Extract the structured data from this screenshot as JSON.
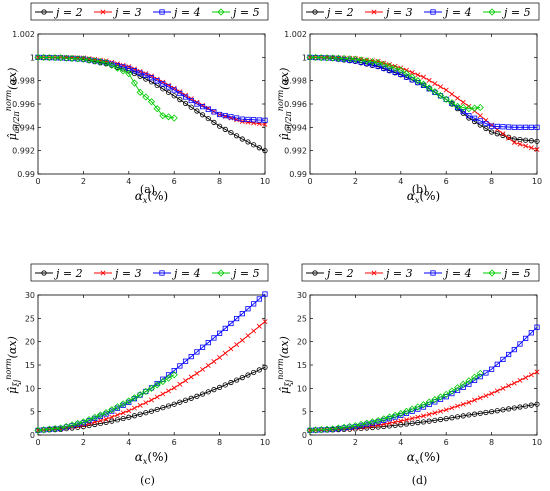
{
  "figure_labels": [
    "(a)",
    "(b)",
    "(c)",
    "(d)"
  ],
  "colors": {
    "j2": "#000000",
    "j3": "#ff0000",
    "j4": "#0000ff",
    "j5": "#00cc00"
  },
  "chart_data": [
    {
      "type": "line",
      "panel_label": "(a)",
      "xlabel": "αx(%)",
      "ylabel": "μ̂ωj/2π norm(αx)",
      "xlim": [
        0,
        10
      ],
      "ylim": [
        0.99,
        1.002
      ],
      "xticks": [
        "0",
        "2",
        "4",
        "6",
        "8",
        "10"
      ],
      "yticks": [
        "0.99",
        "0.992",
        "0.994",
        "0.996",
        "0.998",
        "1",
        "1.002"
      ],
      "legend_position": "top",
      "series": [
        {
          "name": "j = 2",
          "marker": "circle",
          "x": [
            0,
            1,
            2,
            3,
            4,
            5,
            6,
            7,
            8,
            9,
            10
          ],
          "y": [
            1.0,
            0.99996,
            0.9998,
            0.99945,
            0.99885,
            0.9979,
            0.9967,
            0.9954,
            0.9941,
            0.993,
            0.992
          ]
        },
        {
          "name": "j = 3",
          "marker": "cross",
          "x": [
            0,
            1,
            2,
            3,
            4,
            5,
            6,
            7,
            8,
            9,
            10
          ],
          "y": [
            1.0,
            1.0,
            0.99995,
            0.9997,
            0.9992,
            0.9984,
            0.99735,
            0.99615,
            0.9951,
            0.9945,
            0.99425
          ]
        },
        {
          "name": "j = 4",
          "marker": "square",
          "x": [
            0,
            1,
            2,
            3,
            4,
            5,
            6,
            7,
            8,
            9,
            10
          ],
          "y": [
            1.0,
            0.99995,
            0.99985,
            0.99955,
            0.99905,
            0.99825,
            0.9972,
            0.996,
            0.9951,
            0.9947,
            0.9946
          ]
        },
        {
          "name": "j = 5",
          "marker": "diamond",
          "x": [
            0,
            1,
            2,
            3,
            4,
            4.5,
            5,
            5.5,
            6
          ],
          "y": [
            1.0,
            0.99996,
            0.99985,
            0.99955,
            0.9986,
            0.997,
            0.9962,
            0.995,
            0.9948
          ]
        }
      ]
    },
    {
      "type": "line",
      "panel_label": "(b)",
      "xlabel": "αx(%)",
      "ylabel": "μ̂ωj/2π norm(αx)",
      "xlim": [
        0,
        10
      ],
      "ylim": [
        0.99,
        1.002
      ],
      "xticks": [
        "0",
        "2",
        "4",
        "6",
        "8",
        "10"
      ],
      "yticks": [
        "0.99",
        "0.992",
        "0.994",
        "0.996",
        "0.998",
        "1",
        "1.002"
      ],
      "legend_position": "top",
      "series": [
        {
          "name": "j = 2",
          "marker": "circle",
          "x": [
            0,
            1,
            2,
            3,
            4,
            5,
            6,
            7,
            8,
            9,
            10
          ],
          "y": [
            1.0,
            0.9999,
            0.99965,
            0.9992,
            0.9985,
            0.9976,
            0.9964,
            0.9948,
            0.9936,
            0.993,
            0.9928
          ]
        },
        {
          "name": "j = 3",
          "marker": "cross",
          "x": [
            0,
            1,
            2,
            3,
            4,
            5,
            6,
            7,
            8,
            9,
            10
          ],
          "y": [
            1.0,
            0.99998,
            0.9999,
            0.99965,
            0.9991,
            0.9983,
            0.9972,
            0.9958,
            0.9942,
            0.9927,
            0.9921
          ]
        },
        {
          "name": "j = 4",
          "marker": "square",
          "x": [
            0,
            1,
            2,
            3,
            4,
            5,
            6,
            7,
            8,
            9,
            10
          ],
          "y": [
            1.0,
            0.99993,
            0.9997,
            0.99925,
            0.99855,
            0.9976,
            0.9964,
            0.995,
            0.9941,
            0.994,
            0.994
          ]
        },
        {
          "name": "j = 5",
          "marker": "diamond",
          "x": [
            0,
            1,
            2,
            3,
            4,
            5,
            6,
            6.5,
            7,
            7.5
          ],
          "y": [
            1.0,
            0.99995,
            0.99985,
            0.99955,
            0.9989,
            0.9977,
            0.9964,
            0.9958,
            0.9956,
            0.9957
          ]
        }
      ]
    },
    {
      "type": "line",
      "panel_label": "(c)",
      "xlabel": "αx(%)",
      "ylabel": "μ̂ξj norm(αx)",
      "xlim": [
        0,
        10
      ],
      "ylim": [
        0,
        30
      ],
      "xticks": [
        "0",
        "2",
        "4",
        "6",
        "8",
        "10"
      ],
      "yticks": [
        "0",
        "5",
        "10",
        "15",
        "20",
        "25",
        "30"
      ],
      "legend_position": "top",
      "series": [
        {
          "name": "j = 2",
          "marker": "circle",
          "x": [
            0,
            1,
            2,
            3,
            4,
            5,
            6,
            7,
            8,
            9,
            10
          ],
          "y": [
            1.0,
            1.2,
            1.8,
            2.7,
            3.8,
            5.1,
            6.6,
            8.3,
            10.2,
            12.3,
            14.5
          ]
        },
        {
          "name": "j = 3",
          "marker": "cross",
          "x": [
            0,
            1,
            2,
            3,
            4,
            5,
            6,
            7,
            8,
            9,
            10
          ],
          "y": [
            1.0,
            1.3,
            2.1,
            3.4,
            5.2,
            7.5,
            10.1,
            13.2,
            16.6,
            20.3,
            24.3
          ]
        },
        {
          "name": "j = 4",
          "marker": "square",
          "x": [
            0,
            1,
            2,
            3,
            4,
            5,
            6,
            7,
            8,
            9,
            10
          ],
          "y": [
            1.0,
            1.4,
            2.6,
            4.5,
            7.0,
            10.1,
            13.8,
            17.8,
            21.8,
            26.0,
            30.2
          ]
        },
        {
          "name": "j = 5",
          "marker": "diamond",
          "x": [
            0,
            1,
            2,
            3,
            4,
            5,
            6
          ],
          "y": [
            1.0,
            1.5,
            2.8,
            4.8,
            7.3,
            10.0,
            12.9
          ]
        }
      ]
    },
    {
      "type": "line",
      "panel_label": "(d)",
      "xlabel": "αx(%)",
      "ylabel": "μ̂ξj norm(αx)",
      "xlim": [
        0,
        10
      ],
      "ylim": [
        0,
        30
      ],
      "xticks": [
        "0",
        "2",
        "4",
        "6",
        "8",
        "10"
      ],
      "yticks": [
        "0",
        "5",
        "10",
        "15",
        "20",
        "25",
        "30"
      ],
      "legend_position": "top",
      "series": [
        {
          "name": "j = 2",
          "marker": "circle",
          "x": [
            0,
            1,
            2,
            3,
            4,
            5,
            6,
            7,
            8,
            9,
            10
          ],
          "y": [
            1.0,
            1.1,
            1.3,
            1.7,
            2.2,
            2.8,
            3.5,
            4.3,
            5.0,
            5.8,
            6.6
          ]
        },
        {
          "name": "j = 3",
          "marker": "cross",
          "x": [
            0,
            1,
            2,
            3,
            4,
            5,
            6,
            7,
            8,
            9,
            10
          ],
          "y": [
            1.0,
            1.15,
            1.5,
            2.1,
            3.0,
            4.1,
            5.4,
            7.0,
            8.9,
            11.1,
            13.5
          ]
        },
        {
          "name": "j = 4",
          "marker": "square",
          "x": [
            0,
            1,
            2,
            3,
            4,
            5,
            6,
            7,
            8,
            9,
            10
          ],
          "y": [
            1.0,
            1.2,
            1.8,
            2.8,
            4.2,
            6.0,
            8.2,
            10.9,
            14.1,
            18.3,
            23.1
          ]
        },
        {
          "name": "j = 5",
          "marker": "diamond",
          "x": [
            0,
            1,
            2,
            3,
            4,
            5,
            6,
            7,
            7.5
          ],
          "y": [
            1.0,
            1.3,
            2.0,
            3.1,
            4.6,
            6.5,
            8.7,
            11.6,
            13.2
          ]
        }
      ]
    }
  ]
}
